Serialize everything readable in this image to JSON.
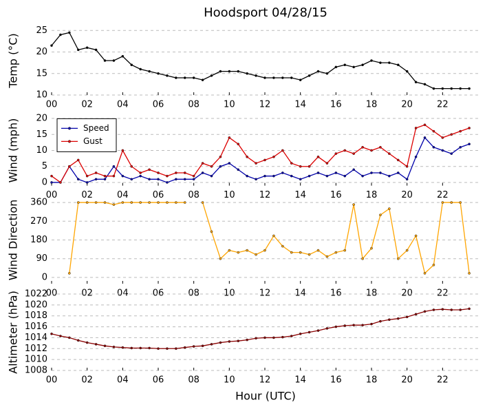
{
  "chart_data": [
    {
      "type": "line",
      "title": "Hoodsport 04/28/15",
      "ylabel": "Temp (°C)",
      "x": [
        0,
        0.5,
        1,
        1.5,
        2,
        2.5,
        3,
        3.5,
        4,
        4.5,
        5,
        5.5,
        6,
        6.5,
        7,
        7.5,
        8,
        8.5,
        9,
        9.5,
        10,
        10.5,
        11,
        11.5,
        12,
        12.5,
        13,
        13.5,
        14,
        14.5,
        15,
        15.5,
        16,
        16.5,
        17,
        17.5,
        18,
        18.5,
        19,
        19.5,
        20,
        20.5,
        21,
        21.5,
        22,
        22.5,
        23,
        23.5
      ],
      "series": [
        {
          "name": "Temp",
          "color": "#000000",
          "values": [
            21.5,
            24,
            24.5,
            20.5,
            21,
            20.5,
            18,
            18,
            19,
            17,
            16,
            15.5,
            15,
            14.5,
            14,
            14,
            14,
            13.5,
            14.5,
            15.5,
            15.5,
            15.5,
            15,
            14.5,
            14,
            14,
            14,
            14,
            13.5,
            14.5,
            15.5,
            15,
            16.5,
            17,
            16.5,
            17,
            18,
            17.5,
            17.5,
            17,
            15.5,
            13,
            12.5,
            11.5,
            11.5,
            11.5,
            11.5,
            11.5
          ]
        }
      ],
      "xlim": [
        0,
        24
      ],
      "xticks": [
        {
          "value": 0,
          "label": "00"
        },
        {
          "value": 2,
          "label": "02"
        },
        {
          "value": 4,
          "label": "04"
        },
        {
          "value": 6,
          "label": "06"
        },
        {
          "value": 8,
          "label": "08"
        },
        {
          "value": 10,
          "label": "10"
        },
        {
          "value": 12,
          "label": "12"
        },
        {
          "value": 14,
          "label": "14"
        },
        {
          "value": 16,
          "label": "16"
        },
        {
          "value": 18,
          "label": "18"
        },
        {
          "value": 20,
          "label": "20"
        },
        {
          "value": 22,
          "label": "22"
        }
      ],
      "ylim": [
        10,
        26
      ],
      "yticks": [
        10,
        15,
        20,
        25
      ],
      "grid": true
    },
    {
      "type": "line",
      "ylabel": "Wind (mph)",
      "x": [
        0,
        0.5,
        1,
        1.5,
        2,
        2.5,
        3,
        3.5,
        4,
        4.5,
        5,
        5.5,
        6,
        6.5,
        7,
        7.5,
        8,
        8.5,
        9,
        9.5,
        10,
        10.5,
        11,
        11.5,
        12,
        12.5,
        13,
        13.5,
        14,
        14.5,
        15,
        15.5,
        16,
        16.5,
        17,
        17.5,
        18,
        18.5,
        19,
        19.5,
        20,
        20.5,
        21,
        21.5,
        22,
        22.5,
        23,
        23.5
      ],
      "series": [
        {
          "name": "Speed",
          "color": "#0000aa",
          "values": [
            0,
            0,
            5,
            1,
            0,
            1,
            1,
            5,
            2,
            1,
            2,
            1,
            1,
            0,
            1,
            1,
            1,
            3,
            2,
            5,
            6,
            4,
            2,
            1,
            2,
            2,
            3,
            2,
            1,
            2,
            3,
            2,
            3,
            2,
            4,
            2,
            3,
            3,
            2,
            3,
            1,
            8,
            14,
            11,
            10,
            9,
            11,
            12
          ]
        },
        {
          "name": "Gust",
          "color": "#dd0000",
          "values": [
            2,
            0,
            5,
            7,
            2,
            3,
            2,
            2,
            10,
            5,
            3,
            4,
            3,
            2,
            3,
            3,
            2,
            6,
            5,
            8,
            14,
            12,
            8,
            6,
            7,
            8,
            10,
            6,
            5,
            5,
            8,
            6,
            9,
            10,
            9,
            11,
            10,
            11,
            9,
            7,
            5,
            17,
            18,
            16,
            14,
            15,
            16,
            17
          ]
        }
      ],
      "legend": "upper left",
      "xlim": [
        0,
        24
      ],
      "xticks": [
        {
          "value": 0,
          "label": "00"
        },
        {
          "value": 2,
          "label": "02"
        },
        {
          "value": 4,
          "label": "04"
        },
        {
          "value": 6,
          "label": "06"
        },
        {
          "value": 8,
          "label": "08"
        },
        {
          "value": 10,
          "label": "10"
        },
        {
          "value": 12,
          "label": "12"
        },
        {
          "value": 14,
          "label": "14"
        },
        {
          "value": 16,
          "label": "16"
        },
        {
          "value": 18,
          "label": "18"
        },
        {
          "value": 20,
          "label": "20"
        },
        {
          "value": 22,
          "label": "22"
        }
      ],
      "ylim": [
        -1,
        21
      ],
      "yticks": [
        0,
        5,
        10,
        15,
        20
      ],
      "grid": true
    },
    {
      "type": "line",
      "ylabel": "Wind Direction",
      "x": [
        0,
        0.5,
        1,
        1.5,
        2,
        2.5,
        3,
        3.5,
        4,
        4.5,
        5,
        5.5,
        6,
        6.5,
        7,
        7.5,
        8,
        8.5,
        9,
        9.5,
        10,
        10.5,
        11,
        11.5,
        12,
        12.5,
        13,
        13.5,
        14,
        14.5,
        15,
        15.5,
        16,
        16.5,
        17,
        17.5,
        18,
        18.5,
        19,
        19.5,
        20,
        20.5,
        21,
        21.5,
        22,
        22.5,
        23,
        23.5
      ],
      "series": [
        {
          "name": "Direction",
          "color": "#ffa500",
          "values": [
            null,
            null,
            20,
            360,
            360,
            360,
            360,
            350,
            360,
            360,
            360,
            360,
            360,
            360,
            360,
            360,
            null,
            360,
            220,
            90,
            130,
            120,
            130,
            110,
            130,
            200,
            150,
            120,
            120,
            110,
            130,
            100,
            120,
            130,
            350,
            90,
            140,
            300,
            330,
            90,
            130,
            200,
            20,
            60,
            360,
            360,
            360,
            20
          ]
        }
      ],
      "xlim": [
        0,
        24
      ],
      "xticks": [
        {
          "value": 0,
          "label": "00"
        },
        {
          "value": 2,
          "label": "02"
        },
        {
          "value": 4,
          "label": "04"
        },
        {
          "value": 6,
          "label": "06"
        },
        {
          "value": 8,
          "label": "08"
        },
        {
          "value": 10,
          "label": "10"
        },
        {
          "value": 12,
          "label": "12"
        },
        {
          "value": 14,
          "label": "14"
        },
        {
          "value": 16,
          "label": "16"
        },
        {
          "value": 18,
          "label": "18"
        },
        {
          "value": 20,
          "label": "20"
        },
        {
          "value": 22,
          "label": "22"
        }
      ],
      "ylim": [
        -30,
        390
      ],
      "yticks": [
        0,
        90,
        180,
        270,
        360
      ],
      "grid": true
    },
    {
      "type": "line",
      "ylabel": "Altimeter (hPa)",
      "xlabel": "Hour (UTC)",
      "x": [
        0,
        0.5,
        1,
        1.5,
        2,
        2.5,
        3,
        3.5,
        4,
        4.5,
        5,
        5.5,
        6,
        6.5,
        7,
        7.5,
        8,
        8.5,
        9,
        9.5,
        10,
        10.5,
        11,
        11.5,
        12,
        12.5,
        13,
        13.5,
        14,
        14.5,
        15,
        15.5,
        16,
        16.5,
        17,
        17.5,
        18,
        18.5,
        19,
        19.5,
        20,
        20.5,
        21,
        21.5,
        22,
        22.5,
        23,
        23.5
      ],
      "series": [
        {
          "name": "Altimeter",
          "color": "#8b0000",
          "values": [
            1014.7,
            1014.3,
            1014,
            1013.5,
            1013.1,
            1012.8,
            1012.5,
            1012.3,
            1012.2,
            1012.1,
            1012.1,
            1012.1,
            1012,
            1012,
            1012,
            1012.2,
            1012.4,
            1012.5,
            1012.8,
            1013.1,
            1013.3,
            1013.4,
            1013.6,
            1013.9,
            1014,
            1014,
            1014.1,
            1014.3,
            1014.7,
            1015,
            1015.3,
            1015.7,
            1016,
            1016.2,
            1016.3,
            1016.3,
            1016.5,
            1017,
            1017.3,
            1017.5,
            1017.8,
            1018.3,
            1018.8,
            1019.1,
            1019.2,
            1019.1,
            1019.1,
            1019.3
          ]
        }
      ],
      "xlim": [
        0,
        24
      ],
      "xticks": [
        {
          "value": 0,
          "label": "00"
        },
        {
          "value": 2,
          "label": "02"
        },
        {
          "value": 4,
          "label": "04"
        },
        {
          "value": 6,
          "label": "06"
        },
        {
          "value": 8,
          "label": "08"
        },
        {
          "value": 10,
          "label": "10"
        },
        {
          "value": 12,
          "label": "12"
        },
        {
          "value": 14,
          "label": "14"
        },
        {
          "value": 16,
          "label": "16"
        },
        {
          "value": 18,
          "label": "18"
        },
        {
          "value": 20,
          "label": "20"
        },
        {
          "value": 22,
          "label": "22"
        }
      ],
      "ylim": [
        1008,
        1022
      ],
      "yticks": [
        1008,
        1010,
        1012,
        1014,
        1016,
        1018,
        1020,
        1022
      ],
      "grid": true
    }
  ]
}
